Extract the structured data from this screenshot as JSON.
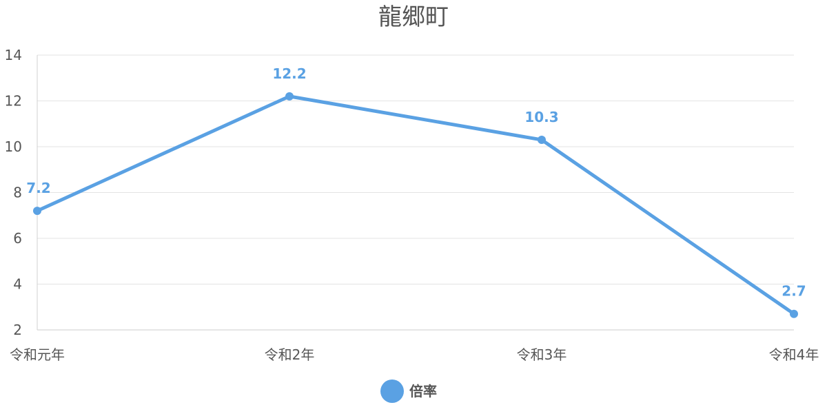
{
  "chart_data": {
    "type": "line",
    "title": "龍郷町",
    "xlabel": "",
    "ylabel": "",
    "categories": [
      "令和元年",
      "令和2年",
      "令和3年",
      "令和4年"
    ],
    "series": [
      {
        "name": "倍率",
        "values": [
          7.2,
          12.2,
          10.3,
          2.7
        ],
        "color": "#5aa1e3"
      }
    ],
    "ylim": [
      2,
      14
    ],
    "yticks": [
      2,
      4,
      6,
      8,
      10,
      12,
      14
    ],
    "grid": true,
    "legend": "bottom-center",
    "data_labels": [
      "7.2",
      "12.2",
      "10.3",
      "2.7"
    ]
  }
}
